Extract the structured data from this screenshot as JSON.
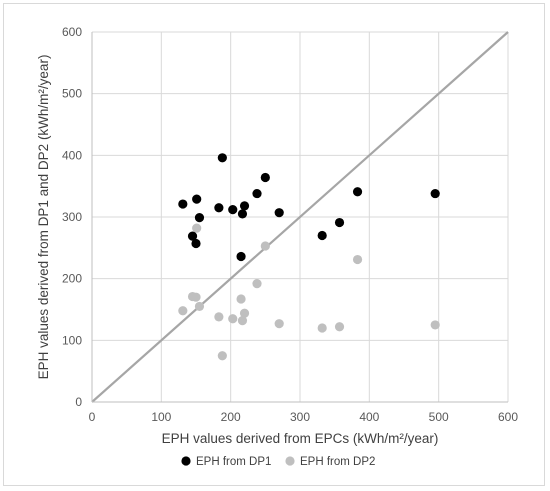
{
  "chart_data": {
    "type": "scatter",
    "xlabel": "EPH values derived from EPCs (kWh/m²/year)",
    "ylabel": "EPH values derived from DP1 and DP2  (kWh/m²/year)",
    "xlim": [
      0,
      600
    ],
    "ylim": [
      0,
      600
    ],
    "x_ticks": [
      "0",
      "100",
      "200",
      "300",
      "400",
      "500",
      "600"
    ],
    "y_ticks": [
      "0",
      "100",
      "200",
      "300",
      "400",
      "500",
      "600"
    ],
    "grid": true,
    "legend_position": "bottom",
    "reference_line": {
      "from": [
        0,
        0
      ],
      "to": [
        600,
        600
      ],
      "color": "#a6a6a6"
    },
    "series": [
      {
        "name": "EPH from DP1",
        "color": "#000000",
        "points": [
          [
            131,
            321
          ],
          [
            145,
            269
          ],
          [
            150,
            257
          ],
          [
            151,
            329
          ],
          [
            155,
            299
          ],
          [
            183,
            315
          ],
          [
            188,
            396
          ],
          [
            203,
            312
          ],
          [
            215,
            236
          ],
          [
            217,
            305
          ],
          [
            220,
            318
          ],
          [
            238,
            338
          ],
          [
            250,
            364
          ],
          [
            270,
            307
          ],
          [
            332,
            270
          ],
          [
            357,
            291
          ],
          [
            383,
            341
          ],
          [
            495,
            338
          ]
        ]
      },
      {
        "name": "EPH from DP2",
        "color": "#bfbfbf",
        "points": [
          [
            131,
            148
          ],
          [
            145,
            171
          ],
          [
            150,
            170
          ],
          [
            151,
            282
          ],
          [
            155,
            155
          ],
          [
            183,
            138
          ],
          [
            188,
            75
          ],
          [
            203,
            135
          ],
          [
            215,
            167
          ],
          [
            217,
            132
          ],
          [
            220,
            144
          ],
          [
            238,
            192
          ],
          [
            250,
            253
          ],
          [
            270,
            127
          ],
          [
            332,
            120
          ],
          [
            357,
            122
          ],
          [
            383,
            231
          ],
          [
            495,
            125
          ]
        ]
      }
    ]
  }
}
